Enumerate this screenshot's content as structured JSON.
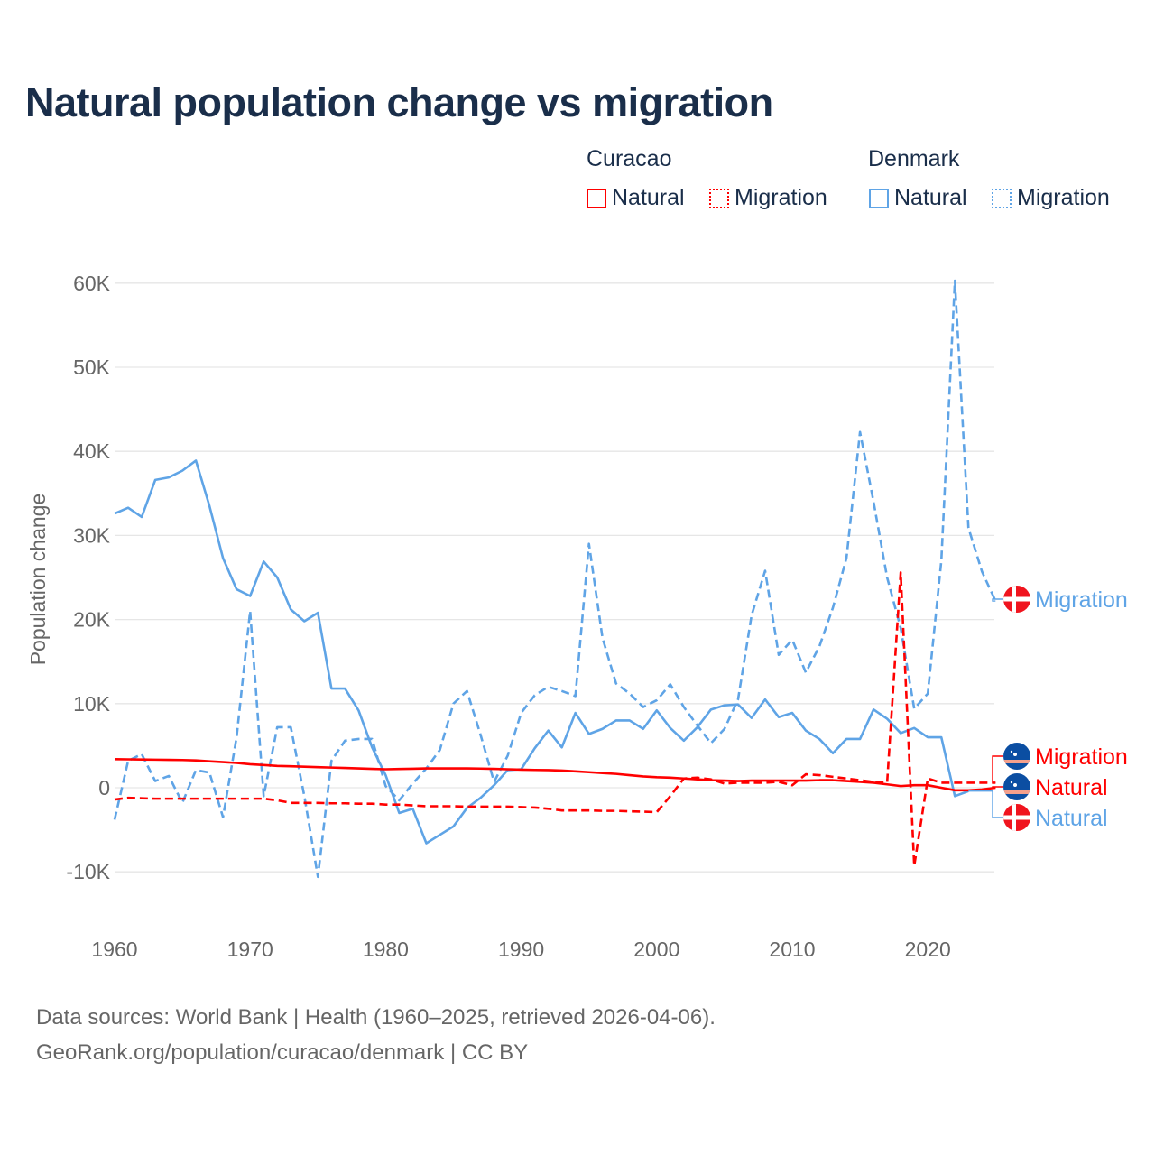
{
  "title": "Natural population change vs migration",
  "legend": {
    "groups": [
      {
        "name": "Curacao",
        "items": [
          "Natural",
          "Migration"
        ],
        "color": "#ff0000"
      },
      {
        "name": "Denmark",
        "items": [
          "Natural",
          "Migration"
        ],
        "color": "#5fa4e6"
      }
    ]
  },
  "source": {
    "line1": "Data sources: World Bank | Health (1960–2025, retrieved 2026-04-06).",
    "line2": "GeoRank.org/population/curacao/denmark | CC BY"
  },
  "chart_data": {
    "type": "line",
    "title": "Natural population change vs migration",
    "xlabel": "",
    "ylabel": "Population change",
    "xlim": [
      1960,
      2025
    ],
    "ylim": [
      -15000,
      65000
    ],
    "x_ticks": [
      1960,
      1970,
      1980,
      1990,
      2000,
      2010,
      2020
    ],
    "x_tick_labels": [
      "1960",
      "1970",
      "1980",
      "1990",
      "2000",
      "2010",
      "2020"
    ],
    "y_ticks": [
      -10000,
      0,
      10000,
      20000,
      30000,
      40000,
      50000,
      60000
    ],
    "y_tick_labels": [
      "-10K",
      "0",
      "10K",
      "20K",
      "30K",
      "40K",
      "50K",
      "60K"
    ],
    "grid": true,
    "legend_placement": "top-right",
    "x": [
      1960,
      1961,
      1962,
      1963,
      1964,
      1965,
      1966,
      1967,
      1968,
      1969,
      1970,
      1971,
      1972,
      1973,
      1974,
      1975,
      1976,
      1977,
      1978,
      1979,
      1980,
      1981,
      1982,
      1983,
      1984,
      1985,
      1986,
      1987,
      1988,
      1989,
      1990,
      1991,
      1992,
      1993,
      1994,
      1995,
      1996,
      1997,
      1998,
      1999,
      2000,
      2001,
      2002,
      2003,
      2004,
      2005,
      2006,
      2007,
      2008,
      2009,
      2010,
      2011,
      2012,
      2013,
      2014,
      2015,
      2016,
      2017,
      2018,
      2019,
      2020,
      2021,
      2022,
      2023,
      2024,
      2025
    ],
    "series": [
      {
        "name": "Curacao Natural",
        "country": "Curacao",
        "kind": "Natural",
        "end_label": "Natural",
        "color": "#ff0000",
        "dashed": false,
        "values": [
          3400,
          3380,
          3360,
          3340,
          3320,
          3300,
          3250,
          3150,
          3050,
          2950,
          2800,
          2700,
          2600,
          2550,
          2500,
          2450,
          2400,
          2350,
          2300,
          2250,
          2200,
          2230,
          2260,
          2300,
          2300,
          2300,
          2300,
          2280,
          2250,
          2200,
          2150,
          2120,
          2100,
          2050,
          1950,
          1850,
          1750,
          1650,
          1500,
          1350,
          1250,
          1200,
          1100,
          1000,
          900,
          850,
          800,
          850,
          850,
          850,
          850,
          850,
          900,
          900,
          800,
          700,
          600,
          400,
          200,
          300,
          300,
          0,
          -300,
          -300,
          -200,
          0
        ]
      },
      {
        "name": "Curacao Migration",
        "country": "Curacao",
        "kind": "Migration",
        "end_label": "Migration",
        "color": "#ff0000",
        "dashed": true,
        "values": [
          -1400,
          -1200,
          -1250,
          -1300,
          -1300,
          -1300,
          -1300,
          -1300,
          -1300,
          -1300,
          -1300,
          -1300,
          -1500,
          -1800,
          -1800,
          -1800,
          -1850,
          -1850,
          -1900,
          -1900,
          -2000,
          -2000,
          -2100,
          -2200,
          -2200,
          -2200,
          -2250,
          -2250,
          -2250,
          -2250,
          -2300,
          -2350,
          -2500,
          -2700,
          -2700,
          -2700,
          -2750,
          -2750,
          -2800,
          -2850,
          -2900,
          -1000,
          1100,
          1200,
          1000,
          500,
          600,
          600,
          600,
          700,
          300,
          1600,
          1500,
          1300,
          1100,
          900,
          700,
          600,
          25600,
          -9300,
          1100,
          600,
          600,
          600,
          600,
          600
        ]
      },
      {
        "name": "Denmark Natural",
        "country": "Denmark",
        "kind": "Natural",
        "end_label": "Natural",
        "color": "#5fa4e6",
        "dashed": false,
        "values": [
          32600,
          33300,
          32200,
          36600,
          36900,
          37700,
          38900,
          33500,
          27300,
          23600,
          22800,
          26900,
          25000,
          21200,
          19800,
          20800,
          11800,
          11800,
          9200,
          4800,
          1500,
          -3000,
          -2500,
          -6600,
          -5600,
          -4600,
          -2400,
          -1200,
          300,
          2100,
          2200,
          4700,
          6800,
          4800,
          8900,
          6400,
          7000,
          8000,
          8000,
          7000,
          9200,
          7100,
          5600,
          7200,
          9300,
          9800,
          9900,
          8300,
          10500,
          8400,
          8900,
          6800,
          5800,
          4100,
          5800,
          5800,
          9300,
          8200,
          6500,
          7100,
          6000,
          6000,
          -1000,
          -400,
          null,
          null
        ]
      },
      {
        "name": "Denmark Migration",
        "country": "Denmark",
        "kind": "Migration",
        "end_label": "Migration",
        "color": "#5fa4e6",
        "dashed": true,
        "values": [
          -3800,
          3200,
          4000,
          800,
          1400,
          -1800,
          2100,
          1800,
          -3500,
          6000,
          21000,
          -1000,
          7200,
          7200,
          -1000,
          -10600,
          3200,
          5600,
          5800,
          5800,
          200,
          -1500,
          500,
          2300,
          4500,
          10000,
          11500,
          6300,
          700,
          3800,
          8900,
          11000,
          12000,
          11500,
          10900,
          29000,
          17800,
          12400,
          11200,
          9600,
          10400,
          12300,
          9600,
          7400,
          5300,
          7000,
          10500,
          20500,
          25800,
          15800,
          17600,
          13700,
          16800,
          21400,
          27300,
          42300,
          34000,
          25000,
          19000,
          9400,
          11200,
          27000,
          60300,
          30900,
          25700,
          22200
        ]
      }
    ]
  }
}
